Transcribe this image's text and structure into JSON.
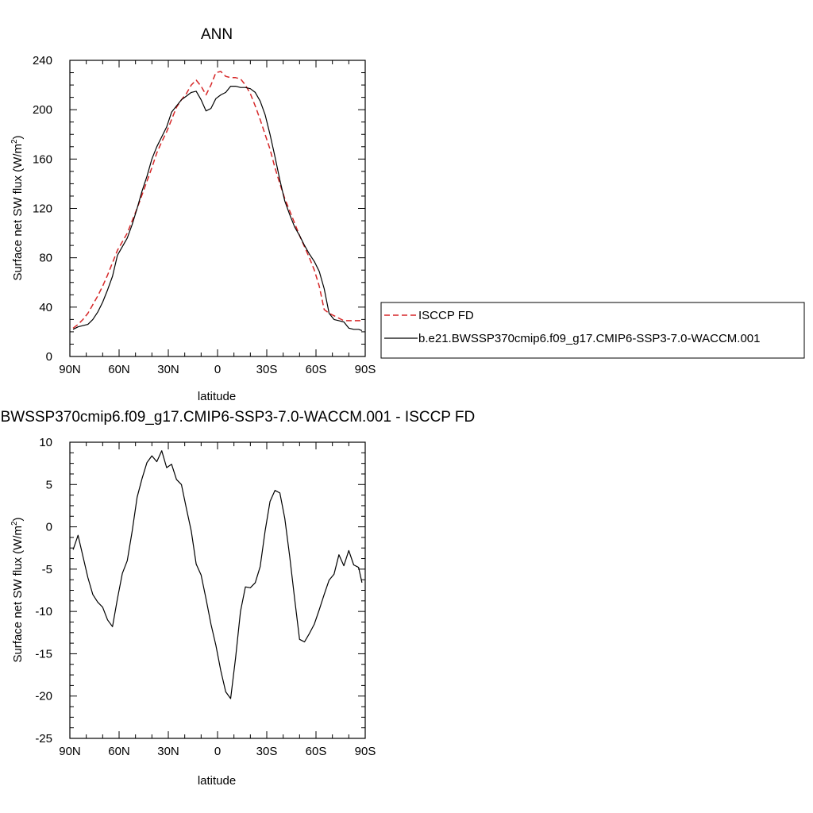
{
  "chart_data": [
    {
      "type": "line",
      "title": "ANN",
      "xlabel": "latitude",
      "ylabel": "Surface net SW flux (W/m",
      "ylabel_sup": "2",
      "ylabel_end": ")",
      "xlim": [
        90,
        -90
      ],
      "ylim": [
        0,
        240
      ],
      "xticks": [
        90,
        60,
        30,
        0,
        -30,
        -60,
        -90
      ],
      "xtick_labels": [
        "90N",
        "60N",
        "30N",
        "0",
        "30S",
        "60S",
        "90S"
      ],
      "yticks": [
        0,
        40,
        80,
        120,
        160,
        200,
        240
      ],
      "ytick_labels": [
        "0",
        "40",
        "80",
        "120",
        "160",
        "200",
        "240"
      ],
      "legend": {
        "placement": "right",
        "entries": [
          "ISCCP FD",
          "b.e21.BWSSP370cmip6.f09_g17.CMIP6-SSP3-7.0-WACCM.001"
        ]
      },
      "series": [
        {
          "name": "ISCCP FD",
          "color": "#d62728",
          "dash": "dashed",
          "x": [
            88,
            85,
            82,
            79,
            76,
            73,
            70,
            67,
            64,
            61,
            58,
            55,
            52,
            49,
            46,
            43,
            40,
            37,
            34,
            31,
            28,
            25,
            22,
            19,
            16,
            13,
            10,
            7,
            4,
            1,
            -2,
            -5,
            -8,
            -11,
            -14,
            -17,
            -20,
            -23,
            -26,
            -29,
            -32,
            -35,
            -38,
            -41,
            -44,
            -47,
            -50,
            -53,
            -56,
            -59,
            -62,
            -65,
            -68,
            -71,
            -74,
            -77,
            -80,
            -83,
            -86,
            -88
          ],
          "y": [
            23,
            26,
            30,
            35,
            42,
            49,
            57,
            66,
            76,
            86,
            93,
            100,
            110,
            120,
            131,
            142,
            153,
            165,
            174,
            182,
            192,
            202,
            208,
            213,
            220,
            224,
            219,
            212,
            220,
            230,
            231,
            227,
            226,
            226,
            225,
            220,
            213,
            203,
            192,
            180,
            168,
            153,
            140,
            128,
            118,
            108,
            98,
            89,
            80,
            70,
            57,
            38,
            35,
            33,
            31,
            29,
            29,
            29,
            29,
            29
          ]
        },
        {
          "name": "b.e21.BWSSP370cmip6.f09_g17.CMIP6-SSP3-7.0-WACCM.001",
          "color": "#000000",
          "dash": "solid",
          "x": [
            88,
            85,
            82,
            79,
            76,
            73,
            70,
            67,
            64,
            61,
            58,
            55,
            52,
            49,
            46,
            43,
            40,
            37,
            34,
            31,
            28,
            25,
            22,
            19,
            16,
            13,
            10,
            7,
            4,
            1,
            -2,
            -5,
            -8,
            -11,
            -14,
            -17,
            -20,
            -23,
            -26,
            -29,
            -32,
            -35,
            -38,
            -41,
            -44,
            -47,
            -50,
            -53,
            -56,
            -59,
            -62,
            -65,
            -68,
            -71,
            -74,
            -77,
            -80,
            -83,
            -86,
            -88
          ],
          "y": [
            22,
            24,
            25,
            26,
            30,
            36,
            44,
            54,
            65,
            82,
            89,
            96,
            107,
            120,
            134,
            146,
            160,
            170,
            178,
            186,
            198,
            203,
            208,
            211,
            214,
            215,
            208,
            199,
            201,
            209,
            212,
            214,
            219,
            219,
            218,
            218,
            217,
            214,
            207,
            196,
            180,
            162,
            143,
            126,
            115,
            105,
            98,
            90,
            83,
            77,
            69,
            55,
            35,
            30,
            29,
            28,
            23,
            22,
            22,
            21
          ]
        }
      ]
    },
    {
      "type": "line",
      "title": "b.e21.BWSSP370cmip6.f09_g17.CMIP6-SSP3-7.0-WACCM.001 - ISCCP FD",
      "xlabel": "latitude",
      "ylabel": "Surface net SW flux (W/m",
      "ylabel_sup": "2",
      "ylabel_end": ")",
      "xlim": [
        90,
        -90
      ],
      "ylim": [
        -25,
        10
      ],
      "xticks": [
        90,
        60,
        30,
        0,
        -30,
        -60,
        -90
      ],
      "xtick_labels": [
        "90N",
        "60N",
        "30N",
        "0",
        "30S",
        "60S",
        "90S"
      ],
      "yticks": [
        -25,
        -20,
        -15,
        -10,
        -5,
        0,
        5,
        10
      ],
      "ytick_labels": [
        "-25",
        "-20",
        "-15",
        "-10",
        "-5",
        "0",
        "5",
        "10"
      ],
      "series": [
        {
          "name": "",
          "color": "#000000",
          "dash": "solid",
          "x": [
            88,
            85,
            82,
            79,
            76,
            73,
            70,
            67,
            64,
            61,
            58,
            55,
            52,
            49,
            46,
            43,
            40,
            37,
            34,
            31,
            28,
            25,
            22,
            19,
            16,
            13,
            10,
            7,
            4,
            1,
            -2,
            -5,
            -8,
            -11,
            -14,
            -17,
            -20,
            -23,
            -26,
            -29,
            -32,
            -35,
            -38,
            -41,
            -44,
            -47,
            -50,
            -53,
            -56,
            -59,
            -62,
            -65,
            -68,
            -71,
            -74,
            -77,
            -80,
            -83,
            -86,
            -88
          ],
          "y": [
            -2.7,
            -1.0,
            -3.5,
            -6.0,
            -8.0,
            -8.9,
            -9.5,
            -11.0,
            -11.8,
            -8.5,
            -5.5,
            -4.0,
            -0.5,
            3.5,
            5.7,
            7.6,
            8.4,
            7.7,
            9.0,
            7.0,
            7.4,
            5.6,
            5.0,
            2.2,
            -0.5,
            -4.4,
            -5.7,
            -8.5,
            -11.5,
            -14.0,
            -17.0,
            -19.5,
            -20.3,
            -15.5,
            -10.0,
            -7.1,
            -7.2,
            -6.6,
            -4.7,
            -0.5,
            3.0,
            4.3,
            4.0,
            1.0,
            -3.5,
            -8.5,
            -13.3,
            -13.6,
            -12.6,
            -11.5,
            -9.8,
            -8.0,
            -6.3,
            -5.6,
            -3.3,
            -4.6,
            -2.8,
            -4.5,
            -4.8,
            -6.6
          ]
        }
      ]
    }
  ]
}
